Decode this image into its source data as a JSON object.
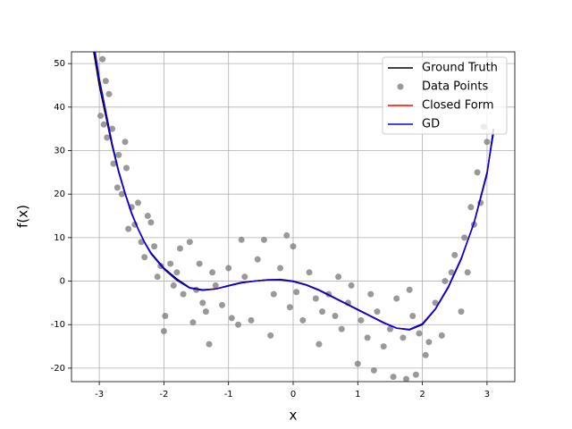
{
  "chart_data": {
    "type": "line",
    "xlabel": "x",
    "ylabel": "f(x)",
    "xlim": [
      -3.43,
      3.43
    ],
    "ylim": [
      -23.1,
      52.7
    ],
    "xticks": [
      -3,
      -2,
      -1,
      0,
      1,
      2,
      3
    ],
    "yticks": [
      -20,
      -10,
      0,
      10,
      20,
      30,
      40,
      50
    ],
    "grid": true,
    "legend": "upper right",
    "x": [
      -3.1,
      -3.0,
      -2.9,
      -2.8,
      -2.7,
      -2.6,
      -2.5,
      -2.4,
      -2.3,
      -2.2,
      -2.0,
      -1.8,
      -1.6,
      -1.4,
      -1.2,
      -1.0,
      -0.8,
      -0.6,
      -0.4,
      -0.2,
      0,
      0.2,
      0.4,
      0.6,
      0.8,
      1.0,
      1.2,
      1.4,
      1.6,
      1.8,
      2.0,
      2.2,
      2.4,
      2.6,
      2.8,
      3.0,
      3.1
    ],
    "series": [
      {
        "name": "Ground Truth",
        "color": "#000000",
        "style": "line",
        "values": [
          54,
          45,
          38,
          31,
          25,
          20,
          15.5,
          12,
          9,
          6.5,
          3,
          0.5,
          -1.5,
          -2,
          -1.8,
          -1,
          -0.3,
          0,
          0.3,
          0.4,
          0,
          -0.8,
          -2,
          -3.5,
          -5,
          -6.5,
          -8,
          -9.5,
          -10.8,
          -11.2,
          -10,
          -6.5,
          -1.5,
          5,
          13.5,
          25,
          34
        ]
      },
      {
        "name": "Data Points",
        "color": "#808080",
        "style": "scatter",
        "x": [
          -2.98,
          -2.95,
          -2.9,
          -2.93,
          -2.88,
          -2.85,
          -2.8,
          -2.78,
          -2.72,
          -2.7,
          -2.65,
          -2.6,
          -2.58,
          -2.55,
          -2.5,
          -2.45,
          -2.4,
          -2.35,
          -2.3,
          -2.25,
          -2.2,
          -2.15,
          -2.1,
          -2.05,
          -2.0,
          -1.98,
          -1.9,
          -1.85,
          -1.8,
          -1.75,
          -1.7,
          -1.6,
          -1.55,
          -1.5,
          -1.45,
          -1.4,
          -1.35,
          -1.3,
          -1.25,
          -1.2,
          -1.1,
          -1.0,
          -0.95,
          -0.85,
          -0.8,
          -0.75,
          -0.65,
          -0.55,
          -0.45,
          -0.35,
          -0.3,
          -0.2,
          -0.1,
          -0.05,
          0,
          0.05,
          0.15,
          0.25,
          0.35,
          0.4,
          0.45,
          0.55,
          0.65,
          0.7,
          0.75,
          0.85,
          0.9,
          1.0,
          1.05,
          1.15,
          1.2,
          1.25,
          1.3,
          1.4,
          1.5,
          1.55,
          1.6,
          1.7,
          1.75,
          1.8,
          1.85,
          1.9,
          1.95,
          2.05,
          2.1,
          2.2,
          2.3,
          2.35,
          2.45,
          2.5,
          2.6,
          2.65,
          2.7,
          2.75,
          2.8,
          2.85,
          2.9,
          2.95,
          3.0
        ],
        "values": [
          38,
          51,
          46,
          36,
          33,
          43,
          35,
          27,
          21.5,
          29,
          20,
          32,
          26,
          12,
          17,
          13,
          18,
          9,
          5.5,
          15,
          13.5,
          8,
          1,
          3.5,
          -11.5,
          -8,
          4,
          -1,
          2,
          7.5,
          -3,
          9,
          -9.5,
          -2,
          4,
          -5,
          -7,
          -14.5,
          2,
          -1,
          -5.5,
          3,
          -8.5,
          -10,
          9.5,
          1,
          -9,
          5,
          9.5,
          -12.5,
          -3,
          3,
          10.5,
          -6,
          8,
          -2.5,
          -9,
          2,
          -4,
          -14.5,
          -7,
          -3,
          -8,
          1,
          -11,
          -5,
          -1,
          -19,
          -9,
          -13,
          -3,
          -20.5,
          -7,
          -15,
          -11,
          -22,
          -4,
          -13,
          -22.5,
          -2,
          -8,
          -21.5,
          -12,
          -17,
          -14,
          -5,
          -12.5,
          0,
          2,
          6,
          -7,
          10,
          2,
          17,
          13,
          25,
          18,
          35.5,
          32
        ]
      },
      {
        "name": "Closed Form",
        "color": "#ff0000",
        "style": "line",
        "values": [
          56,
          46.5,
          39,
          31.5,
          25.3,
          20.2,
          15.7,
          12,
          8.9,
          6.3,
          2.8,
          0.2,
          -1.6,
          -2.1,
          -1.8,
          -1.1,
          -0.4,
          0,
          0.3,
          0.3,
          -0.1,
          -0.9,
          -2.1,
          -3.6,
          -5.1,
          -6.6,
          -8.1,
          -9.6,
          -10.8,
          -11.1,
          -9.8,
          -6.4,
          -1.3,
          5.2,
          13.4,
          24.6,
          35
        ]
      },
      {
        "name": "GD",
        "color": "#0000ff",
        "style": "line",
        "values": [
          56,
          46.5,
          39,
          31.5,
          25.3,
          20.2,
          15.7,
          12,
          8.9,
          6.3,
          2.8,
          0.2,
          -1.6,
          -2.1,
          -1.8,
          -1.1,
          -0.4,
          0,
          0.3,
          0.3,
          -0.1,
          -0.9,
          -2.1,
          -3.6,
          -5.1,
          -6.6,
          -8.1,
          -9.6,
          -10.8,
          -11.1,
          -9.8,
          -6.4,
          -1.3,
          5.2,
          13.4,
          24.6,
          35
        ]
      }
    ]
  }
}
